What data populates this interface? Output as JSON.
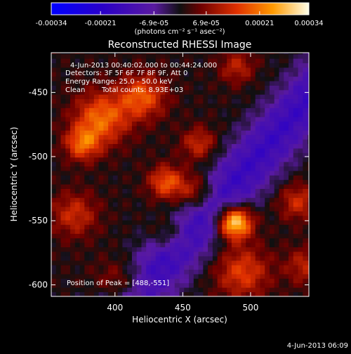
{
  "chart_data": {
    "type": "heatmap",
    "title": "Reconstructed RHESSI Image",
    "xlabel": "Heliocentric X (arcsec)",
    "ylabel": "Heliocentric Y (arcsec)",
    "xlim": [
      353,
      543
    ],
    "ylim": [
      -609,
      -419
    ],
    "x_ticks": [
      "400",
      "450",
      "500"
    ],
    "x_tick_values": [
      400,
      450,
      500
    ],
    "y_ticks": [
      "-450",
      "-500",
      "-550",
      "-600"
    ],
    "y_tick_values": [
      -450,
      -500,
      -550,
      -600
    ],
    "colorbar": {
      "min": -0.00034,
      "max": 0.00034,
      "tick_labels": [
        "-0.00034",
        "-0.00021",
        "-6.9e-05",
        "6.9e-05",
        "0.00021",
        "0.00034"
      ],
      "tick_values": [
        -0.00034,
        -0.00021,
        -6.9e-05,
        6.9e-05,
        0.00021,
        0.00034
      ],
      "units": "(photons cm⁻² s⁻¹ asec⁻²)"
    },
    "annotations": {
      "time_range": "4-Jun-2013 00:40:02.000 to 00:44:24.000",
      "detectors": "Detectors: 3F 5F 6F 7F 8F 9F, Att 0",
      "energy_range": "Energy Range: 25.0 - 50.0 keV",
      "method": "Clean",
      "total_counts": "Total counts: 8.93E+03",
      "peak": "Position of Peak = [488,-551]"
    },
    "peak_position": [
      488,
      -551
    ],
    "sources": [
      {
        "x": 488,
        "y": -551,
        "sigma": 9,
        "amp": 1.0
      },
      {
        "x": 390,
        "y": -470,
        "sigma": 14,
        "amp": 0.55
      },
      {
        "x": 376,
        "y": -490,
        "sigma": 9,
        "amp": 0.5
      },
      {
        "x": 420,
        "y": -453,
        "sigma": 12,
        "amp": 0.5
      },
      {
        "x": 438,
        "y": -520,
        "sigma": 9,
        "amp": 0.5
      },
      {
        "x": 460,
        "y": -528,
        "sigma": 10,
        "amp": 0.4
      },
      {
        "x": 462,
        "y": -490,
        "sigma": 9,
        "amp": 0.35
      },
      {
        "x": 494,
        "y": -590,
        "sigma": 14,
        "amp": 0.42
      },
      {
        "x": 405,
        "y": -600,
        "sigma": 13,
        "amp": 0.38
      },
      {
        "x": 535,
        "y": -535,
        "sigma": 10,
        "amp": 0.35
      },
      {
        "x": 540,
        "y": -585,
        "sigma": 10,
        "amp": 0.3
      },
      {
        "x": 370,
        "y": -545,
        "sigma": 12,
        "amp": 0.35
      },
      {
        "x": 440,
        "y": -560,
        "sigma": 10,
        "amp": 0.3
      },
      {
        "x": 490,
        "y": -430,
        "sigma": 9,
        "amp": 0.3
      }
    ],
    "negative_band": {
      "slope": 1.2,
      "intercept": -1106,
      "sigma": 15,
      "amp": -0.5
    }
  },
  "footer": {
    "timestamp": "4-Jun-2013 06:09"
  }
}
